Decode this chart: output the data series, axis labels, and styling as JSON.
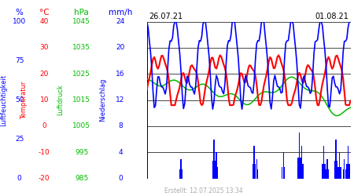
{
  "title_left": "26.07.21",
  "title_right": "01.08.21",
  "footer": "Erstellt: 12.07.2025 13:34",
  "bg_color": "#ffffff",
  "n_points": 168,
  "line_color_blue": "#0000ff",
  "line_color_red": "#ff0000",
  "line_color_green": "#00bb00",
  "bar_color": "#0000ff",
  "hum_range": [
    0,
    100
  ],
  "temp_range": [
    -20,
    40
  ],
  "pres_range": [
    985,
    1045
  ],
  "prec_range": [
    0,
    24
  ],
  "left_axis_labels": {
    "units": [
      {
        "text": "%",
        "color": "#0000ff",
        "col": 0
      },
      {
        "text": "°C",
        "color": "#ff0000",
        "col": 1
      },
      {
        "text": "hPa",
        "color": "#00bb00",
        "col": 2
      },
      {
        "text": "mm/h",
        "color": "#0000ff",
        "col": 3
      }
    ],
    "ticks": [
      {
        "vals": [
          100,
          75,
          50,
          25,
          0
        ],
        "color": "#0000ff",
        "col": 0
      },
      {
        "vals": [
          40,
          30,
          20,
          10,
          0,
          -10,
          -20
        ],
        "color": "#ff0000",
        "col": 1
      },
      {
        "vals": [
          1045,
          1035,
          1025,
          1015,
          1005,
          995,
          985
        ],
        "color": "#00bb00",
        "col": 2
      },
      {
        "vals": [
          24,
          20,
          16,
          12,
          8,
          4,
          0
        ],
        "color": "#0000ff",
        "col": 3
      }
    ]
  },
  "rotated_labels": [
    {
      "text": "Luftfeuchtigkeit",
      "color": "#0000ff"
    },
    {
      "text": "Temperatur",
      "color": "#ff0000"
    },
    {
      "text": "Luftdruck",
      "color": "#00bb00"
    },
    {
      "text": "Niederschlag",
      "color": "#0000ff"
    }
  ]
}
